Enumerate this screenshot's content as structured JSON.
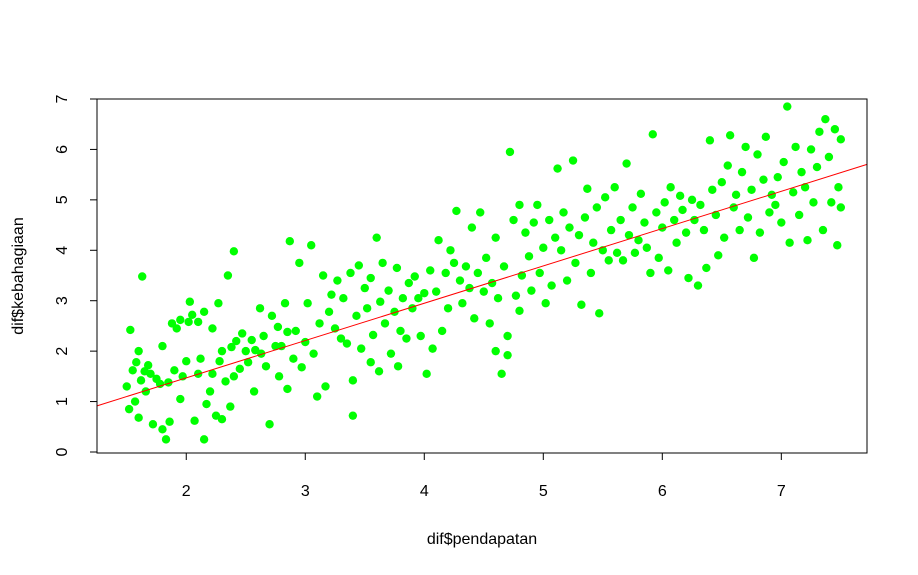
{
  "chart_data": {
    "type": "scatter",
    "title": "",
    "xlabel": "dif$pendapatan",
    "ylabel": "dif$kebahagiaan",
    "xlim": [
      1.25,
      7.72
    ],
    "ylim": [
      -0.02,
      7.0
    ],
    "xticks": [
      2,
      3,
      4,
      5,
      6,
      7
    ],
    "yticks": [
      0,
      1,
      2,
      3,
      4,
      5,
      6,
      7
    ],
    "grid": false,
    "legend": "none",
    "point_color": "#00FF00",
    "line_color": "#FF0000",
    "regression_line": {
      "intercept": -0.01,
      "slope": 0.74
    },
    "points": [
      [
        1.5,
        1.3
      ],
      [
        1.52,
        0.85
      ],
      [
        1.53,
        2.42
      ],
      [
        1.55,
        1.62
      ],
      [
        1.57,
        1.0
      ],
      [
        1.58,
        1.78
      ],
      [
        1.6,
        2.0
      ],
      [
        1.6,
        0.68
      ],
      [
        1.62,
        1.42
      ],
      [
        1.63,
        3.48
      ],
      [
        1.65,
        1.6
      ],
      [
        1.66,
        1.2
      ],
      [
        1.68,
        1.72
      ],
      [
        1.7,
        1.55
      ],
      [
        1.72,
        0.55
      ],
      [
        1.75,
        1.45
      ],
      [
        1.78,
        1.35
      ],
      [
        1.8,
        2.1
      ],
      [
        1.8,
        0.45
      ],
      [
        1.83,
        0.25
      ],
      [
        1.85,
        1.38
      ],
      [
        1.86,
        0.6
      ],
      [
        1.88,
        2.55
      ],
      [
        1.9,
        1.62
      ],
      [
        1.92,
        2.45
      ],
      [
        1.95,
        1.05
      ],
      [
        1.95,
        2.62
      ],
      [
        1.97,
        1.5
      ],
      [
        2.0,
        1.8
      ],
      [
        2.02,
        2.58
      ],
      [
        2.03,
        2.98
      ],
      [
        2.05,
        2.72
      ],
      [
        2.07,
        0.62
      ],
      [
        2.1,
        2.58
      ],
      [
        2.1,
        1.55
      ],
      [
        2.12,
        1.85
      ],
      [
        2.15,
        0.25
      ],
      [
        2.15,
        2.78
      ],
      [
        2.17,
        0.95
      ],
      [
        2.2,
        1.2
      ],
      [
        2.22,
        2.45
      ],
      [
        2.22,
        1.55
      ],
      [
        2.25,
        0.72
      ],
      [
        2.27,
        2.95
      ],
      [
        2.28,
        1.8
      ],
      [
        2.3,
        2.0
      ],
      [
        2.3,
        0.65
      ],
      [
        2.33,
        1.4
      ],
      [
        2.35,
        3.5
      ],
      [
        2.37,
        0.9
      ],
      [
        2.38,
        2.08
      ],
      [
        2.4,
        3.98
      ],
      [
        2.4,
        1.5
      ],
      [
        2.42,
        2.2
      ],
      [
        2.45,
        1.65
      ],
      [
        2.47,
        2.35
      ],
      [
        2.5,
        2.0
      ],
      [
        2.52,
        1.78
      ],
      [
        2.55,
        2.22
      ],
      [
        2.57,
        1.2
      ],
      [
        2.58,
        2.02
      ],
      [
        2.62,
        2.85
      ],
      [
        2.63,
        1.95
      ],
      [
        2.65,
        2.3
      ],
      [
        2.67,
        1.7
      ],
      [
        2.7,
        0.55
      ],
      [
        2.72,
        2.7
      ],
      [
        2.75,
        2.1
      ],
      [
        2.77,
        2.48
      ],
      [
        2.78,
        1.5
      ],
      [
        2.8,
        2.1
      ],
      [
        2.83,
        2.95
      ],
      [
        2.85,
        1.25
      ],
      [
        2.85,
        2.38
      ],
      [
        2.87,
        4.18
      ],
      [
        2.9,
        1.85
      ],
      [
        2.92,
        2.4
      ],
      [
        2.95,
        3.75
      ],
      [
        2.97,
        1.68
      ],
      [
        3.0,
        2.18
      ],
      [
        3.02,
        2.95
      ],
      [
        3.05,
        4.1
      ],
      [
        3.07,
        1.95
      ],
      [
        3.1,
        1.1
      ],
      [
        3.12,
        2.55
      ],
      [
        3.15,
        3.5
      ],
      [
        3.17,
        1.3
      ],
      [
        3.2,
        2.78
      ],
      [
        3.22,
        3.12
      ],
      [
        3.25,
        2.45
      ],
      [
        3.27,
        3.4
      ],
      [
        3.3,
        2.25
      ],
      [
        3.32,
        3.05
      ],
      [
        3.35,
        2.15
      ],
      [
        3.38,
        3.55
      ],
      [
        3.4,
        0.72
      ],
      [
        3.4,
        1.42
      ],
      [
        3.43,
        2.7
      ],
      [
        3.45,
        3.7
      ],
      [
        3.47,
        2.05
      ],
      [
        3.5,
        3.25
      ],
      [
        3.52,
        2.85
      ],
      [
        3.55,
        1.78
      ],
      [
        3.55,
        3.45
      ],
      [
        3.57,
        2.32
      ],
      [
        3.6,
        4.25
      ],
      [
        3.62,
        1.6
      ],
      [
        3.63,
        2.98
      ],
      [
        3.65,
        3.75
      ],
      [
        3.67,
        2.55
      ],
      [
        3.7,
        3.2
      ],
      [
        3.72,
        1.95
      ],
      [
        3.75,
        2.78
      ],
      [
        3.77,
        3.65
      ],
      [
        3.78,
        1.7
      ],
      [
        3.8,
        2.4
      ],
      [
        3.82,
        3.05
      ],
      [
        3.85,
        2.25
      ],
      [
        3.87,
        3.35
      ],
      [
        3.9,
        2.85
      ],
      [
        3.92,
        3.48
      ],
      [
        3.95,
        3.05
      ],
      [
        3.97,
        2.3
      ],
      [
        4.0,
        3.15
      ],
      [
        4.02,
        1.55
      ],
      [
        4.05,
        3.6
      ],
      [
        4.07,
        2.05
      ],
      [
        4.1,
        3.18
      ],
      [
        4.12,
        4.2
      ],
      [
        4.15,
        2.4
      ],
      [
        4.18,
        3.55
      ],
      [
        4.2,
        2.85
      ],
      [
        4.22,
        4.0
      ],
      [
        4.25,
        3.75
      ],
      [
        4.27,
        4.78
      ],
      [
        4.3,
        3.4
      ],
      [
        4.32,
        2.95
      ],
      [
        4.35,
        3.68
      ],
      [
        4.38,
        3.25
      ],
      [
        4.4,
        4.45
      ],
      [
        4.42,
        2.65
      ],
      [
        4.45,
        3.55
      ],
      [
        4.47,
        4.75
      ],
      [
        4.5,
        3.18
      ],
      [
        4.52,
        3.85
      ],
      [
        4.55,
        2.55
      ],
      [
        4.57,
        3.35
      ],
      [
        4.6,
        2.0
      ],
      [
        4.6,
        4.25
      ],
      [
        4.62,
        3.05
      ],
      [
        4.65,
        1.55
      ],
      [
        4.67,
        3.68
      ],
      [
        4.7,
        2.3
      ],
      [
        4.7,
        1.92
      ],
      [
        4.72,
        5.95
      ],
      [
        4.75,
        4.6
      ],
      [
        4.77,
        3.1
      ],
      [
        4.8,
        4.9
      ],
      [
        4.8,
        2.8
      ],
      [
        4.82,
        3.5
      ],
      [
        4.85,
        4.35
      ],
      [
        4.88,
        3.88
      ],
      [
        4.9,
        3.2
      ],
      [
        4.92,
        4.55
      ],
      [
        4.95,
        4.9
      ],
      [
        4.97,
        3.55
      ],
      [
        5.0,
        4.05
      ],
      [
        5.02,
        2.95
      ],
      [
        5.05,
        4.6
      ],
      [
        5.07,
        3.3
      ],
      [
        5.1,
        4.25
      ],
      [
        5.12,
        5.62
      ],
      [
        5.15,
        4.0
      ],
      [
        5.17,
        4.75
      ],
      [
        5.2,
        3.4
      ],
      [
        5.22,
        4.45
      ],
      [
        5.25,
        5.78
      ],
      [
        5.27,
        3.75
      ],
      [
        5.3,
        4.3
      ],
      [
        5.32,
        2.92
      ],
      [
        5.35,
        4.65
      ],
      [
        5.37,
        5.22
      ],
      [
        5.4,
        3.55
      ],
      [
        5.42,
        4.15
      ],
      [
        5.45,
        4.85
      ],
      [
        5.47,
        2.75
      ],
      [
        5.5,
        4.0
      ],
      [
        5.52,
        5.05
      ],
      [
        5.55,
        3.8
      ],
      [
        5.57,
        4.4
      ],
      [
        5.6,
        5.25
      ],
      [
        5.62,
        3.95
      ],
      [
        5.65,
        4.6
      ],
      [
        5.67,
        3.8
      ],
      [
        5.7,
        5.72
      ],
      [
        5.72,
        4.3
      ],
      [
        5.75,
        4.85
      ],
      [
        5.77,
        3.95
      ],
      [
        5.8,
        4.2
      ],
      [
        5.82,
        5.12
      ],
      [
        5.85,
        4.55
      ],
      [
        5.87,
        4.05
      ],
      [
        5.9,
        3.55
      ],
      [
        5.92,
        6.3
      ],
      [
        5.95,
        4.75
      ],
      [
        5.97,
        3.85
      ],
      [
        6.0,
        4.45
      ],
      [
        6.02,
        4.95
      ],
      [
        6.05,
        3.6
      ],
      [
        6.07,
        5.25
      ],
      [
        6.1,
        4.6
      ],
      [
        6.12,
        4.15
      ],
      [
        6.15,
        5.08
      ],
      [
        6.17,
        4.8
      ],
      [
        6.2,
        4.35
      ],
      [
        6.22,
        3.45
      ],
      [
        6.25,
        5.0
      ],
      [
        6.27,
        4.6
      ],
      [
        6.3,
        3.3
      ],
      [
        6.32,
        4.9
      ],
      [
        6.35,
        4.4
      ],
      [
        6.37,
        3.65
      ],
      [
        6.4,
        6.18
      ],
      [
        6.42,
        5.2
      ],
      [
        6.45,
        4.7
      ],
      [
        6.47,
        3.9
      ],
      [
        6.5,
        5.35
      ],
      [
        6.52,
        4.25
      ],
      [
        6.55,
        5.68
      ],
      [
        6.57,
        6.28
      ],
      [
        6.6,
        4.85
      ],
      [
        6.62,
        5.1
      ],
      [
        6.65,
        4.4
      ],
      [
        6.67,
        5.55
      ],
      [
        6.7,
        6.05
      ],
      [
        6.72,
        4.65
      ],
      [
        6.75,
        5.2
      ],
      [
        6.77,
        3.85
      ],
      [
        6.8,
        5.9
      ],
      [
        6.82,
        4.35
      ],
      [
        6.85,
        5.4
      ],
      [
        6.87,
        6.25
      ],
      [
        6.9,
        4.75
      ],
      [
        6.92,
        5.1
      ],
      [
        6.95,
        4.9
      ],
      [
        6.97,
        5.45
      ],
      [
        7.0,
        4.55
      ],
      [
        7.02,
        5.75
      ],
      [
        7.05,
        6.85
      ],
      [
        7.07,
        4.15
      ],
      [
        7.1,
        5.15
      ],
      [
        7.12,
        6.05
      ],
      [
        7.15,
        4.7
      ],
      [
        7.17,
        5.55
      ],
      [
        7.2,
        5.25
      ],
      [
        7.22,
        4.2
      ],
      [
        7.25,
        6.0
      ],
      [
        7.27,
        4.95
      ],
      [
        7.3,
        5.65
      ],
      [
        7.32,
        6.35
      ],
      [
        7.35,
        4.4
      ],
      [
        7.37,
        6.6
      ],
      [
        7.4,
        5.85
      ],
      [
        7.42,
        4.95
      ],
      [
        7.45,
        6.4
      ],
      [
        7.47,
        4.1
      ],
      [
        7.48,
        5.25
      ],
      [
        7.5,
        4.85
      ],
      [
        7.5,
        6.2
      ]
    ]
  }
}
